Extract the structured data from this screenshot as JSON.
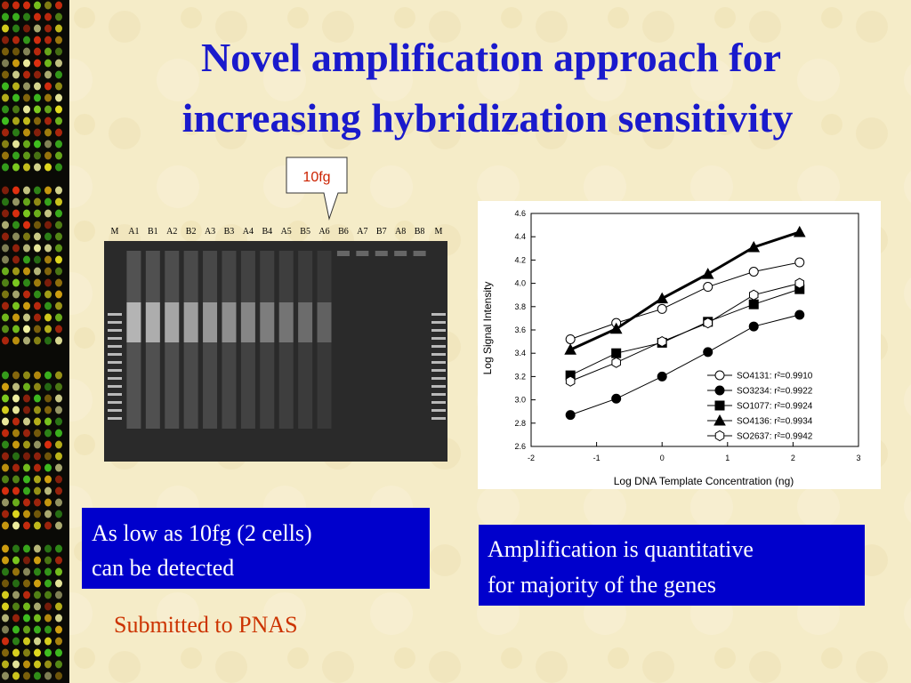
{
  "slide": {
    "title_lines": [
      "Novel amplification approach for",
      "increasing hybridization sensitivity"
    ],
    "callout": "10fg",
    "gel_lanes": [
      "M",
      "A1",
      "B1",
      "A2",
      "B2",
      "A3",
      "B3",
      "A4",
      "B4",
      "A5",
      "B5",
      "A6",
      "B6",
      "A7",
      "B7",
      "A8",
      "B8",
      "M"
    ],
    "box_left": [
      "As low as 10fg (2 cells)",
      "can be detected"
    ],
    "box_right": [
      "Amplification is quantitative",
      "for majority of the genes"
    ],
    "note": "Submitted to PNAS"
  },
  "chart_data": {
    "type": "line",
    "x_label": "Log DNA Template Concentration (ng)",
    "y_label": "Log Signal Intensity",
    "x": [
      -1.4,
      -0.7,
      0,
      0.7,
      1.4,
      2.1
    ],
    "xlim": [
      -2,
      3
    ],
    "xticks": [
      -2,
      -1,
      0,
      1,
      2,
      3
    ],
    "ylim": [
      2.6,
      4.6
    ],
    "yticks": [
      2.6,
      2.8,
      {
        "value": 3,
        "label": "3.0"
      },
      3.2,
      3.4,
      3.6,
      3.8,
      {
        "value": 4,
        "label": "4.0"
      },
      4.2,
      4.4,
      4.6
    ],
    "legend": "lower right",
    "series": [
      {
        "name": "SO4131: r²=0.9910",
        "color": "#000000",
        "marker": "circle-open",
        "values": [
          3.52,
          3.66,
          3.78,
          3.97,
          4.1,
          4.18
        ]
      },
      {
        "name": "SO3234: r²=0.9922",
        "color": "#000000",
        "marker": "circle-filled",
        "values": [
          2.87,
          3.01,
          3.2,
          3.41,
          3.63,
          3.73
        ]
      },
      {
        "name": "SO1077: r²=0.9924",
        "color": "#000000",
        "marker": "square",
        "values": [
          3.21,
          3.4,
          3.49,
          3.67,
          3.82,
          3.95
        ]
      },
      {
        "name": "SO4136: r²=0.9934",
        "color": "#000000",
        "marker": "triangle",
        "values": [
          3.43,
          3.61,
          3.87,
          4.08,
          4.31,
          4.44
        ]
      },
      {
        "name": "SO2637: r²=0.9942",
        "color": "#000000",
        "marker": "hexagon-open",
        "values": [
          3.16,
          3.32,
          3.5,
          3.66,
          3.9,
          4.0
        ]
      }
    ]
  }
}
